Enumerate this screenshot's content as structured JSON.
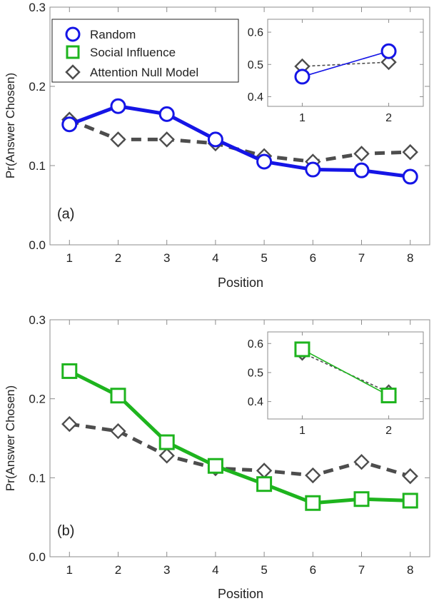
{
  "colors": {
    "random": "#1515e6",
    "social": "#1eb41e",
    "null": "#4d4d4d",
    "frame": "#8c8c8c"
  },
  "legend": [
    {
      "label": "Random",
      "marker": "circle",
      "color": "#1515e6"
    },
    {
      "label": "Social Influence",
      "marker": "square",
      "color": "#1eb41e"
    },
    {
      "label": "Attention Null Model",
      "marker": "diamond",
      "color": "#4d4d4d"
    }
  ],
  "chart_data": [
    {
      "type": "line",
      "panel_label": "(a)",
      "xlabel": "Position",
      "ylabel": "Pr(Answer Chosen)",
      "x": [
        1,
        2,
        3,
        4,
        5,
        6,
        7,
        8
      ],
      "xlim": [
        0.6,
        8.4
      ],
      "ylim": [
        0,
        0.3
      ],
      "yticks": [
        "0.0",
        "0.1",
        "0.2",
        "0.3"
      ],
      "legend_position": "top-left",
      "series": [
        {
          "name": "Random",
          "values": [
            0.152,
            0.175,
            0.165,
            0.133,
            0.105,
            0.095,
            0.094,
            0.086
          ]
        },
        {
          "name": "Attention Null Model",
          "values": [
            0.158,
            0.133,
            0.133,
            0.128,
            0.112,
            0.105,
            0.115,
            0.117
          ]
        }
      ],
      "inset": {
        "x": [
          1,
          2
        ],
        "xlim": [
          0.6,
          2.4
        ],
        "ylim": [
          0.37,
          0.64
        ],
        "yticks": [
          "0.4",
          "0.5",
          "0.6"
        ],
        "series": [
          {
            "name": "Random",
            "values": [
              0.462,
              0.541
            ]
          },
          {
            "name": "Attention Null Model",
            "values": [
              0.494,
              0.507
            ]
          }
        ]
      }
    },
    {
      "type": "line",
      "panel_label": "(b)",
      "xlabel": "Position",
      "ylabel": "Pr(Answer Chosen)",
      "x": [
        1,
        2,
        3,
        4,
        5,
        6,
        7,
        8
      ],
      "xlim": [
        0.6,
        8.4
      ],
      "ylim": [
        0,
        0.3
      ],
      "yticks": [
        "0.0",
        "0.1",
        "0.2",
        "0.3"
      ],
      "series": [
        {
          "name": "Social Influence",
          "values": [
            0.235,
            0.204,
            0.145,
            0.115,
            0.092,
            0.068,
            0.073,
            0.071
          ]
        },
        {
          "name": "Attention Null Model",
          "values": [
            0.168,
            0.159,
            0.128,
            0.112,
            0.109,
            0.103,
            0.12,
            0.102
          ]
        }
      ],
      "inset": {
        "x": [
          1,
          2
        ],
        "xlim": [
          0.6,
          2.4
        ],
        "ylim": [
          0.34,
          0.64
        ],
        "yticks": [
          "0.4",
          "0.5",
          "0.6"
        ],
        "series": [
          {
            "name": "Social Influence",
            "values": [
              0.58,
              0.421
            ]
          },
          {
            "name": "Attention Null Model",
            "values": [
              0.568,
              0.432
            ]
          }
        ]
      }
    }
  ]
}
